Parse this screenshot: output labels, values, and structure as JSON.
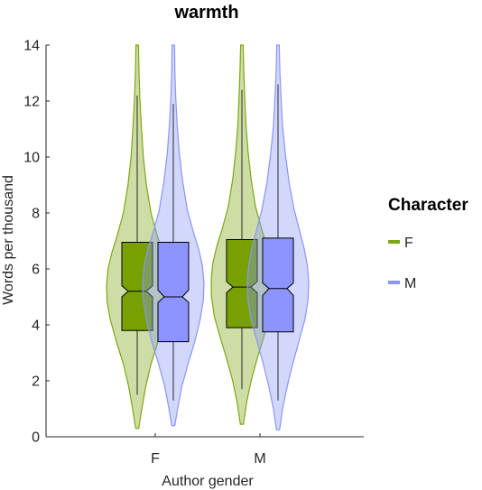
{
  "chart_data": {
    "type": "violin",
    "title": "warmth",
    "xlabel": "Author gender",
    "ylabel": "Words per thousand",
    "ylim": [
      0,
      14
    ],
    "yticks": [
      0,
      2,
      4,
      6,
      8,
      10,
      12,
      14
    ],
    "categories": [
      "F",
      "M"
    ],
    "legend": {
      "title": "Character",
      "position": "right"
    },
    "series": [
      {
        "name": "F",
        "color": "#7ea614",
        "box_color": "#77a000",
        "groups": [
          {
            "category": "F",
            "whisker_low": 1.5,
            "q1": 3.8,
            "median": 5.2,
            "q3": 6.95,
            "whisker_high": 12.2,
            "notch_low": 5.0,
            "notch_high": 5.4,
            "violin": [
              [
                0.3,
                0.05
              ],
              [
                1,
                0.15
              ],
              [
                1.8,
                0.28
              ],
              [
                2.6,
                0.45
              ],
              [
                3.4,
                0.68
              ],
              [
                4.2,
                0.88
              ],
              [
                4.8,
                0.98
              ],
              [
                5.4,
                1.0
              ],
              [
                6,
                0.95
              ],
              [
                6.6,
                0.82
              ],
              [
                7.2,
                0.65
              ],
              [
                8,
                0.45
              ],
              [
                9,
                0.3
              ],
              [
                10,
                0.2
              ],
              [
                11,
                0.14
              ],
              [
                12,
                0.09
              ],
              [
                13,
                0.06
              ],
              [
                14,
                0.04
              ]
            ]
          },
          {
            "category": "M",
            "whisker_low": 1.7,
            "q1": 3.9,
            "median": 5.35,
            "q3": 7.05,
            "whisker_high": 12.4,
            "notch_low": 5.15,
            "notch_high": 5.55,
            "violin": [
              [
                0.45,
                0.05
              ],
              [
                1.2,
                0.15
              ],
              [
                2,
                0.3
              ],
              [
                2.8,
                0.5
              ],
              [
                3.6,
                0.72
              ],
              [
                4.3,
                0.9
              ],
              [
                5,
                0.99
              ],
              [
                5.6,
                1.0
              ],
              [
                6.2,
                0.95
              ],
              [
                6.8,
                0.82
              ],
              [
                7.4,
                0.65
              ],
              [
                8.2,
                0.45
              ],
              [
                9.2,
                0.3
              ],
              [
                10.2,
                0.2
              ],
              [
                11.2,
                0.13
              ],
              [
                12.2,
                0.09
              ],
              [
                13.2,
                0.06
              ],
              [
                14,
                0.04
              ]
            ]
          }
        ]
      },
      {
        "name": "M",
        "color": "#8a96f6",
        "box_color": "#8c94ff",
        "groups": [
          {
            "category": "F",
            "whisker_low": 1.3,
            "q1": 3.4,
            "median": 5.0,
            "q3": 6.95,
            "whisker_high": 11.9,
            "notch_low": 4.8,
            "notch_high": 5.25,
            "violin": [
              [
                0.4,
                0.05
              ],
              [
                1,
                0.14
              ],
              [
                1.8,
                0.28
              ],
              [
                2.6,
                0.48
              ],
              [
                3.4,
                0.7
              ],
              [
                4.2,
                0.88
              ],
              [
                4.9,
                0.98
              ],
              [
                5.5,
                1.0
              ],
              [
                6.1,
                0.95
              ],
              [
                6.7,
                0.83
              ],
              [
                7.3,
                0.66
              ],
              [
                8.1,
                0.46
              ],
              [
                9.1,
                0.31
              ],
              [
                10.1,
                0.2
              ],
              [
                11.1,
                0.13
              ],
              [
                12.1,
                0.08
              ],
              [
                13.1,
                0.05
              ],
              [
                14,
                0.04
              ]
            ]
          },
          {
            "category": "M",
            "whisker_low": 1.3,
            "q1": 3.75,
            "median": 5.3,
            "q3": 7.1,
            "whisker_high": 12.6,
            "notch_low": 5.05,
            "notch_high": 5.5,
            "violin": [
              [
                0.25,
                0.05
              ],
              [
                1,
                0.15
              ],
              [
                1.8,
                0.3
              ],
              [
                2.6,
                0.48
              ],
              [
                3.4,
                0.68
              ],
              [
                4.2,
                0.88
              ],
              [
                4.9,
                0.98
              ],
              [
                5.5,
                1.0
              ],
              [
                6.1,
                0.96
              ],
              [
                6.7,
                0.86
              ],
              [
                7.3,
                0.72
              ],
              [
                8.1,
                0.53
              ],
              [
                9.1,
                0.36
              ],
              [
                10.1,
                0.24
              ],
              [
                11.1,
                0.15
              ],
              [
                12.1,
                0.1
              ],
              [
                13.1,
                0.06
              ],
              [
                14,
                0.04
              ]
            ]
          }
        ]
      }
    ]
  }
}
